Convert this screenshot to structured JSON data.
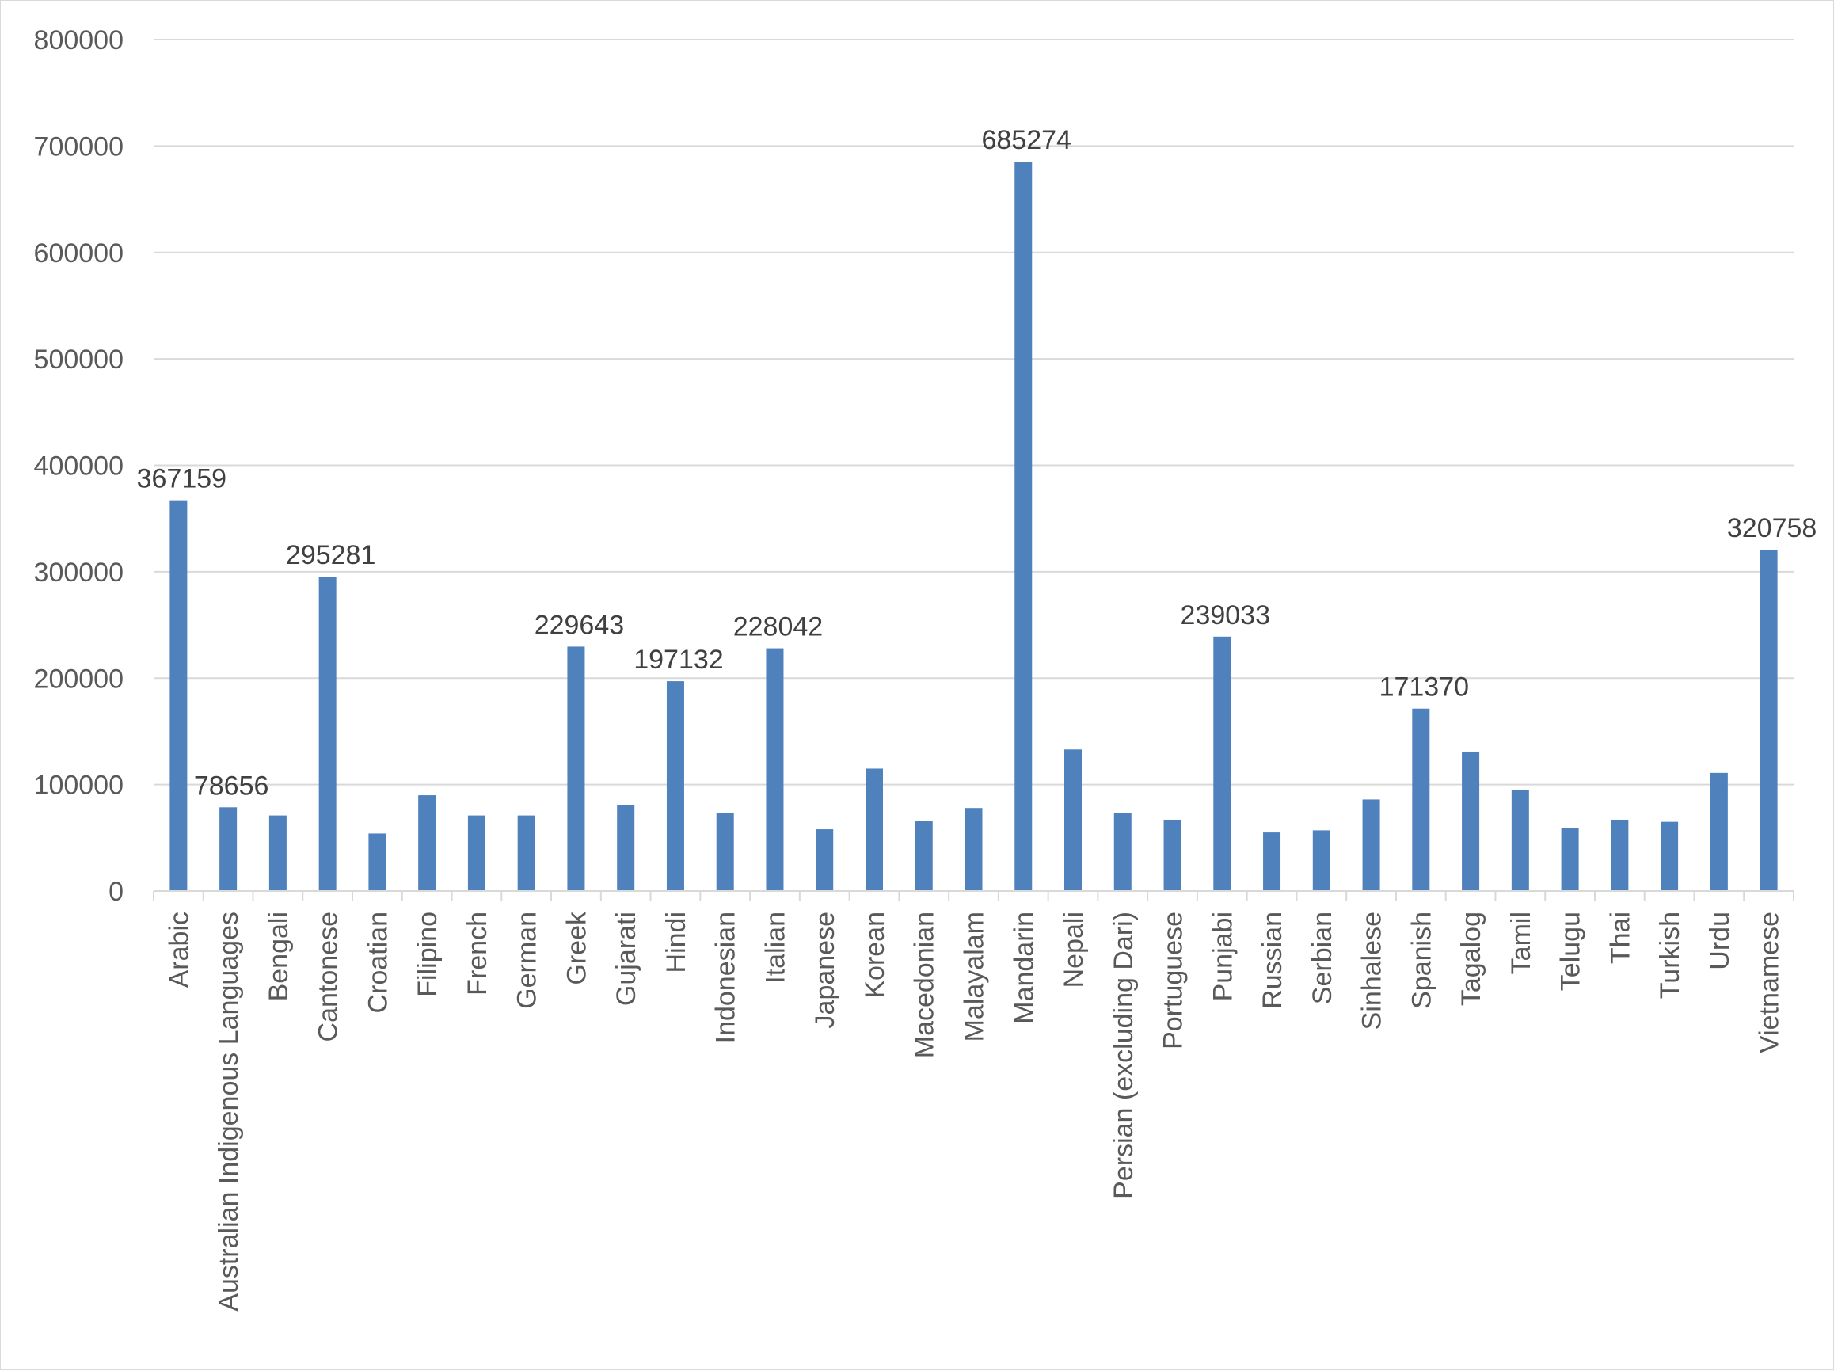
{
  "chart_data": {
    "type": "bar",
    "title": "",
    "xlabel": "",
    "ylabel": "",
    "ylim": [
      0,
      800000
    ],
    "yticks": [
      0,
      100000,
      200000,
      300000,
      400000,
      500000,
      600000,
      700000,
      800000
    ],
    "ytick_labels": [
      "0",
      "100000",
      "200000",
      "300000",
      "400000",
      "500000",
      "600000",
      "700000",
      "800000"
    ],
    "grid": true,
    "legend": "none",
    "bar_color": "#4f81bd",
    "categories": [
      "Arabic",
      "Australian Indigenous Languages",
      "Bengali",
      "Cantonese",
      "Croatian",
      "Filipino",
      "French",
      "German",
      "Greek",
      "Gujarati",
      "Hindi",
      "Indonesian",
      "Italian",
      "Japanese",
      "Korean",
      "Macedonian",
      "Malayalam",
      "Mandarin",
      "Nepali",
      "Persian (excluding Dari)",
      "Portuguese",
      "Punjabi",
      "Russian",
      "Serbian",
      "Sinhalese",
      "Spanish",
      "Tagalog",
      "Tamil",
      "Telugu",
      "Thai",
      "Turkish",
      "Urdu",
      "Vietnamese"
    ],
    "values": [
      367159,
      78656,
      71000,
      295281,
      54000,
      90000,
      71000,
      71000,
      229643,
      81000,
      197132,
      73000,
      228042,
      58000,
      115000,
      66000,
      78000,
      685274,
      133000,
      73000,
      67000,
      239033,
      55000,
      57000,
      86000,
      171370,
      131000,
      95000,
      59000,
      67000,
      65000,
      111000,
      320758
    ],
    "data_labels": [
      {
        "category": "Arabic",
        "text": "367159"
      },
      {
        "category": "Australian Indigenous Languages",
        "text": "78656"
      },
      {
        "category": "Cantonese",
        "text": "295281"
      },
      {
        "category": "Greek",
        "text": "229643"
      },
      {
        "category": "Hindi",
        "text": "197132"
      },
      {
        "category": "Italian",
        "text": "228042"
      },
      {
        "category": "Mandarin",
        "text": "685274"
      },
      {
        "category": "Punjabi",
        "text": "239033"
      },
      {
        "category": "Spanish",
        "text": "171370"
      },
      {
        "category": "Vietnamese",
        "text": "320758"
      }
    ]
  }
}
